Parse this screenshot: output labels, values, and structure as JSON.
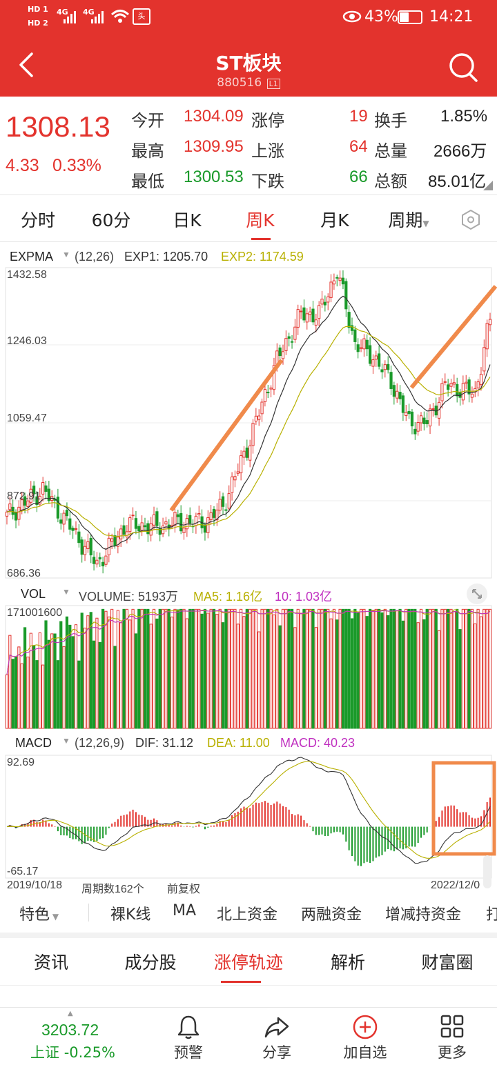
{
  "status_bar": {
    "hd1": "HD 1",
    "hd2": "HD 2",
    "net1": "4G",
    "net2": "4G",
    "battery": "43%",
    "time": "14:21"
  },
  "header": {
    "title": "ST板块",
    "code": "880516",
    "code_badge": "L1"
  },
  "quote": {
    "price": "1308.13",
    "change": "4.33",
    "change_pct": "0.33%",
    "open_label": "今开",
    "open": "1304.09",
    "high_label": "最高",
    "high": "1309.95",
    "low_label": "最低",
    "low": "1300.53",
    "limit_up_label": "涨停",
    "limit_up": "19",
    "up_label": "上涨",
    "up": "64",
    "down_label": "下跌",
    "down": "66",
    "turnover_label": "换手",
    "turnover": "1.85%",
    "volume_label": "总量",
    "volume": "2666万",
    "amount_label": "总额",
    "amount": "85.01亿"
  },
  "period_tabs": [
    "分时",
    "60分",
    "日K",
    "周K",
    "月K",
    "周期"
  ],
  "active_period": "周K",
  "chart_header": {
    "expma_name": "EXPMA",
    "expma_params": "(12,26)",
    "exp1": "EXP1: 1205.70",
    "exp2": "EXP2: 1174.59",
    "vol_name": "VOL",
    "volume": "VOLUME: 5193万",
    "ma5": "MA5: 1.16亿",
    "ma10": "10: 1.03亿",
    "macd_name": "MACD",
    "macd_params": "(12,26,9)",
    "dif": "DIF: 31.12",
    "dea": "DEA: 11.00",
    "macd": "MACD: 40.23"
  },
  "axis": {
    "price_ticks": [
      "1432.58",
      "1246.03",
      "1059.47",
      "872.91",
      "686.36"
    ],
    "vol_max": "171001600",
    "macd_max": "92.69",
    "macd_min": "-65.17",
    "date_start": "2019/10/18",
    "period_count": "周期数162个",
    "adjust": "前复权",
    "date_end": "2022/12/0"
  },
  "chart_data": {
    "type": "candlestick",
    "title": "",
    "xlabel": "",
    "ylabel": "",
    "ylim": [
      686.36,
      1432.58
    ],
    "x_range": [
      "2019/10/18",
      "2022/12/0"
    ],
    "periods": 162,
    "price_anchors": [
      {
        "t": 0,
        "p": 835
      },
      {
        "t": 12,
        "p": 900
      },
      {
        "t": 20,
        "p": 820
      },
      {
        "t": 30,
        "p": 720
      },
      {
        "t": 40,
        "p": 815
      },
      {
        "t": 50,
        "p": 810
      },
      {
        "t": 56,
        "p": 820
      },
      {
        "t": 66,
        "p": 820
      },
      {
        "t": 72,
        "p": 860
      },
      {
        "t": 80,
        "p": 1000
      },
      {
        "t": 90,
        "p": 1210
      },
      {
        "t": 98,
        "p": 1320
      },
      {
        "t": 104,
        "p": 1320
      },
      {
        "t": 110,
        "p": 1425
      },
      {
        "t": 116,
        "p": 1250
      },
      {
        "t": 122,
        "p": 1220
      },
      {
        "t": 128,
        "p": 1160
      },
      {
        "t": 134,
        "p": 1060
      },
      {
        "t": 140,
        "p": 1060
      },
      {
        "t": 146,
        "p": 1150
      },
      {
        "t": 152,
        "p": 1140
      },
      {
        "t": 156,
        "p": 1130
      },
      {
        "t": 161,
        "p": 1308
      }
    ],
    "volume_max": 171001600,
    "macd_range": [
      -65.17,
      92.69
    ],
    "dif": 31.12,
    "dea": 11.0,
    "macd": 40.23
  },
  "indicators": [
    "特色",
    "裸K线",
    "MA",
    "北上资金",
    "两融资金",
    "增减持资金",
    "打"
  ],
  "section_tabs": [
    "资讯",
    "成分股",
    "涨停轨迹",
    "解析",
    "财富圈"
  ],
  "active_section": "涨停轨迹",
  "bottom_nav": {
    "index_value": "3203.72",
    "index_name": "上证",
    "index_change": "-0.25%",
    "alert": "预警",
    "share": "分享",
    "add": "加自选",
    "more": "更多"
  },
  "colors": {
    "brand_red": "#e3332d",
    "down_green": "#1a9a2a",
    "exp1_line": "#333333",
    "exp2_line": "#b8b000",
    "ma10_line": "#c030c0",
    "annotation": "#f08a4b"
  }
}
